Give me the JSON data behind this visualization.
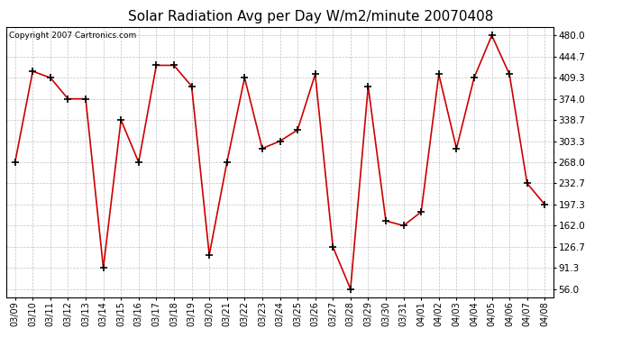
{
  "title": "Solar Radiation Avg per Day W/m2/minute 20070408",
  "copyright": "Copyright 2007 Cartronics.com",
  "x_labels": [
    "03/09",
    "03/10",
    "03/11",
    "03/12",
    "03/13",
    "03/14",
    "03/15",
    "03/16",
    "03/17",
    "03/18",
    "03/19",
    "03/20",
    "03/21",
    "03/22",
    "03/23",
    "03/24",
    "03/25",
    "03/26",
    "03/27",
    "03/28",
    "03/29",
    "03/30",
    "03/31",
    "04/01",
    "04/02",
    "04/03",
    "04/04",
    "04/05",
    "04/06",
    "04/07",
    "04/08"
  ],
  "y_values": [
    268.0,
    420.0,
    409.3,
    374.0,
    374.0,
    91.3,
    338.7,
    268.0,
    430.0,
    430.0,
    395.0,
    113.0,
    268.0,
    409.3,
    291.0,
    303.3,
    322.0,
    415.0,
    126.7,
    56.0,
    395.0,
    170.0,
    162.0,
    185.0,
    415.0,
    291.0,
    409.3,
    480.0,
    415.0,
    232.7,
    197.3
  ],
  "line_color": "#cc0000",
  "marker": "+",
  "marker_size": 6,
  "marker_color": "#000000",
  "background_color": "#ffffff",
  "plot_bg_color": "#ffffff",
  "grid_color": "#bbbbbb",
  "y_ticks": [
    56.0,
    91.3,
    126.7,
    162.0,
    197.3,
    232.7,
    268.0,
    303.3,
    338.7,
    374.0,
    409.3,
    444.7,
    480.0
  ],
  "ylim": [
    42.0,
    494.0
  ],
  "title_fontsize": 11,
  "copyright_fontsize": 6.5,
  "tick_fontsize": 7,
  "ytick_fontsize": 7.5
}
